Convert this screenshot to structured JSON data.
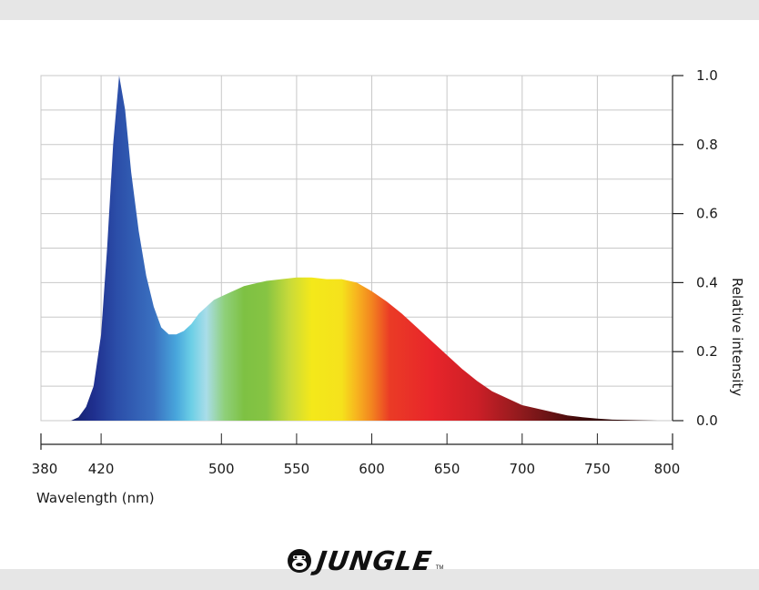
{
  "brand": {
    "name": "JUNGLE",
    "tm": "TM",
    "logo_icon": "gorilla-head-icon"
  },
  "chart_data": {
    "type": "area",
    "xlabel": "Wavelength (nm)",
    "ylabel": "Relative intensity",
    "xlim": [
      380,
      800
    ],
    "ylim": [
      0,
      1
    ],
    "x_ticks": [
      380,
      420,
      500,
      550,
      600,
      650,
      700,
      750,
      800
    ],
    "y_ticks": [
      "0.0",
      "0.2",
      "0.4",
      "0.6",
      "0.8",
      "1.0"
    ],
    "grid": true,
    "fill": "visible-spectrum",
    "series": [
      {
        "x": [
          400,
          405,
          410,
          415,
          420,
          424,
          428,
          432,
          436,
          440,
          445,
          450,
          455,
          460,
          465,
          470,
          475,
          480,
          485,
          490,
          495,
          500,
          505,
          510,
          515,
          520,
          525,
          530,
          540,
          550,
          560,
          570,
          580,
          590,
          600,
          610,
          620,
          630,
          640,
          650,
          660,
          670,
          680,
          690,
          700,
          710,
          720,
          730,
          740,
          750,
          760,
          770,
          780,
          790
        ],
        "y": [
          0.0,
          0.01,
          0.04,
          0.1,
          0.25,
          0.5,
          0.8,
          1.0,
          0.9,
          0.72,
          0.55,
          0.42,
          0.33,
          0.27,
          0.25,
          0.25,
          0.26,
          0.28,
          0.31,
          0.33,
          0.35,
          0.36,
          0.37,
          0.38,
          0.39,
          0.395,
          0.4,
          0.405,
          0.41,
          0.415,
          0.415,
          0.41,
          0.41,
          0.4,
          0.375,
          0.345,
          0.31,
          0.27,
          0.23,
          0.19,
          0.15,
          0.115,
          0.085,
          0.065,
          0.045,
          0.035,
          0.025,
          0.015,
          0.01,
          0.006,
          0.003,
          0.002,
          0.001,
          0.0
        ]
      }
    ]
  }
}
